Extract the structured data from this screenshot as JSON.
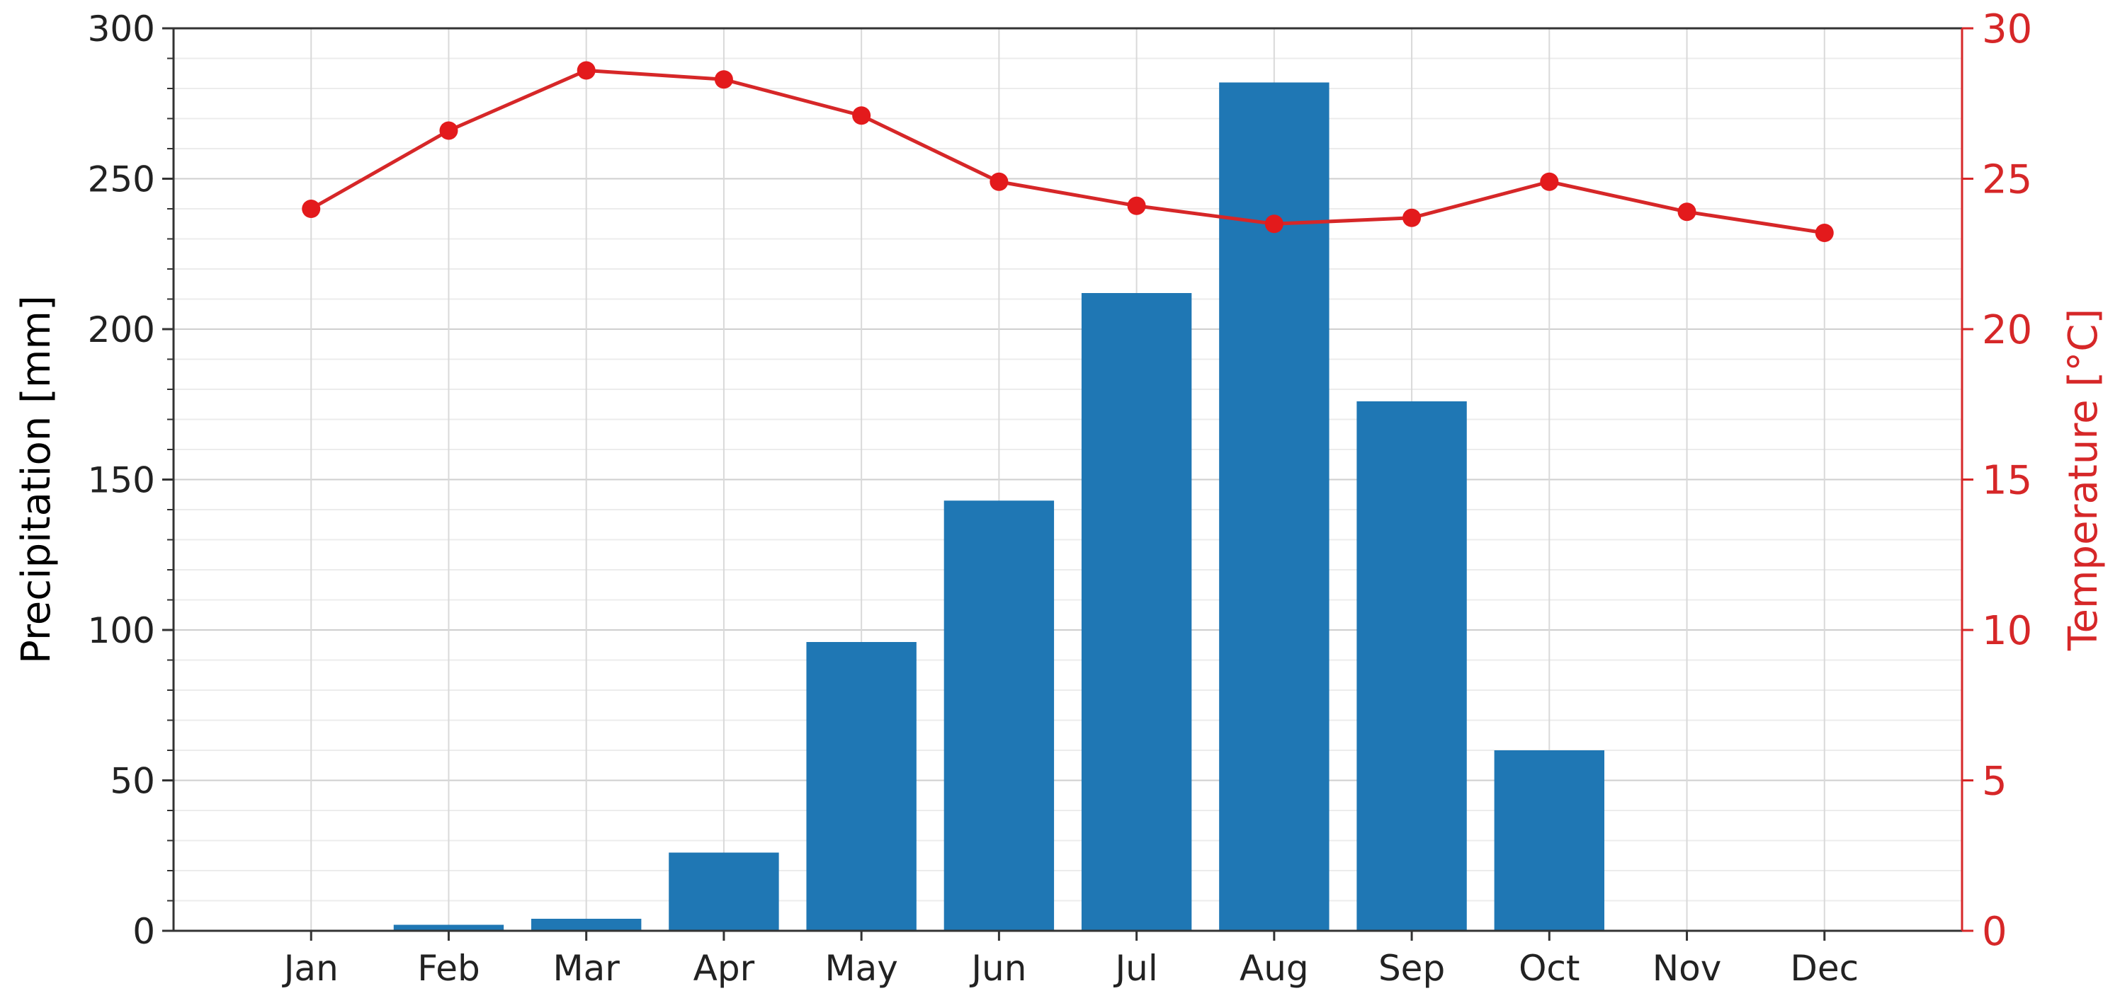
{
  "chart_data": {
    "type": "bar",
    "categories": [
      "Jan",
      "Feb",
      "Mar",
      "Apr",
      "May",
      "Jun",
      "Jul",
      "Aug",
      "Sep",
      "Oct",
      "Nov",
      "Dec"
    ],
    "series": [
      {
        "type": "bar",
        "axis": "left",
        "color": "#1f77b4",
        "values": [
          0,
          2,
          4,
          26,
          96,
          143,
          212,
          282,
          176,
          60,
          0,
          0
        ]
      },
      {
        "type": "line",
        "axis": "right",
        "color": "#d62728",
        "marker": "circle",
        "values": [
          24.0,
          26.6,
          28.6,
          28.3,
          27.1,
          24.9,
          24.1,
          23.5,
          23.7,
          24.9,
          23.9,
          23.2
        ]
      }
    ],
    "xlabel": "",
    "ylabel": "Precipitation [mm]",
    "ylim": [
      0,
      300
    ],
    "yticks": [
      0,
      50,
      100,
      150,
      200,
      250,
      300
    ],
    "y2label": "Temperature [°C]",
    "y2lim": [
      0,
      30
    ],
    "y2ticks": [
      0,
      5,
      10,
      15,
      20,
      25,
      30
    ],
    "grid": true,
    "minor_grid": true
  }
}
